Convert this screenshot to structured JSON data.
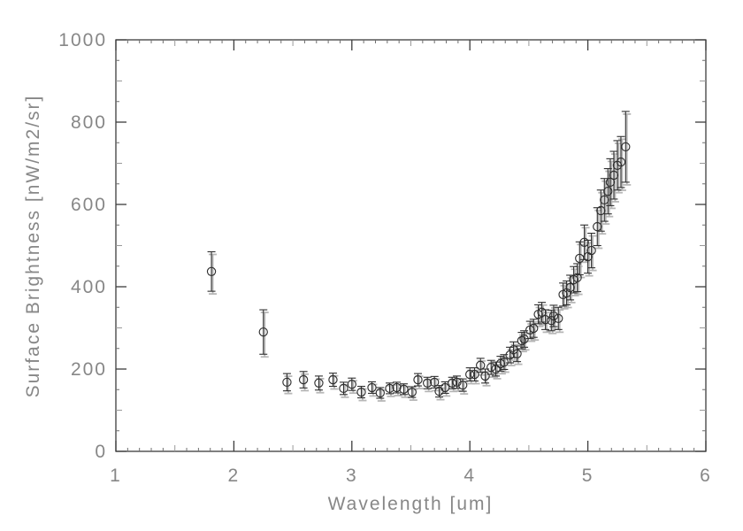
{
  "figure": {
    "background": "#ffffff",
    "description": "Scatter plot of sky surface brightness spectrum versus wavelength with vertical error bars"
  },
  "chart_data": {
    "type": "scatter",
    "title": "",
    "xlabel": "Wavelength [um]",
    "ylabel": "Surface Brightness [nW/m2/sr]",
    "xlim": [
      1,
      6
    ],
    "ylim": [
      0,
      1000
    ],
    "x_major_ticks": [
      1,
      2,
      3,
      4,
      5,
      6
    ],
    "y_major_ticks": [
      0,
      200,
      400,
      600,
      800,
      1000
    ],
    "x_minor_step": 0.1,
    "x_mid_step": 0.5,
    "y_minor_step": 50,
    "y_mid_step": 100,
    "grid": false,
    "legend": null,
    "marker": "open-circle",
    "error_bars": "vertical-with-caps",
    "colors": {
      "data": "#2f2f2f",
      "shadow": "#b7b7b7",
      "axis": "#3c3c3c",
      "mid_tick": "#999999",
      "minor_tick": "#6e6e6e",
      "text": "#878787",
      "background": "#ffffff"
    },
    "series": [
      {
        "name": "surface-brightness-spectrum",
        "x": [
          1.81,
          2.25,
          2.45,
          2.59,
          2.72,
          2.84,
          2.93,
          3.0,
          3.08,
          3.17,
          3.24,
          3.32,
          3.38,
          3.44,
          3.51,
          3.56,
          3.64,
          3.7,
          3.74,
          3.79,
          3.85,
          3.89,
          3.94,
          4.0,
          4.04,
          4.09,
          4.13,
          4.18,
          4.22,
          4.26,
          4.29,
          4.34,
          4.37,
          4.4,
          4.44,
          4.46,
          4.51,
          4.54,
          4.58,
          4.61,
          4.64,
          4.69,
          4.71,
          4.75,
          4.79,
          4.82,
          4.85,
          4.88,
          4.91,
          4.93,
          4.97,
          5.0,
          5.03,
          5.08,
          5.11,
          5.14,
          5.17,
          5.19,
          5.22,
          5.25,
          5.28,
          5.32
        ],
        "y": [
          437,
          290,
          168,
          174,
          166,
          174,
          153,
          163,
          144,
          155,
          142,
          153,
          155,
          151,
          144,
          174,
          166,
          168,
          146,
          155,
          166,
          168,
          161,
          187,
          187,
          209,
          183,
          204,
          200,
          213,
          217,
          234,
          247,
          237,
          269,
          273,
          295,
          299,
          333,
          338,
          320,
          318,
          329,
          323,
          381,
          385,
          398,
          417,
          422,
          469,
          508,
          473,
          488,
          546,
          585,
          611,
          632,
          654,
          671,
          695,
          703,
          740
        ],
        "yerr": [
          48,
          54,
          21,
          20,
          17,
          16,
          15,
          15,
          14,
          14,
          13,
          13,
          13,
          13,
          13,
          15,
          14,
          14,
          14,
          14,
          14,
          15,
          15,
          16,
          16,
          17,
          17,
          17,
          17,
          18,
          18,
          19,
          19,
          19,
          20,
          20,
          21,
          22,
          23,
          24,
          24,
          25,
          26,
          27,
          28,
          29,
          30,
          32,
          34,
          40,
          42,
          40,
          42,
          46,
          50,
          52,
          55,
          57,
          58,
          60,
          62,
          86
        ]
      }
    ]
  }
}
